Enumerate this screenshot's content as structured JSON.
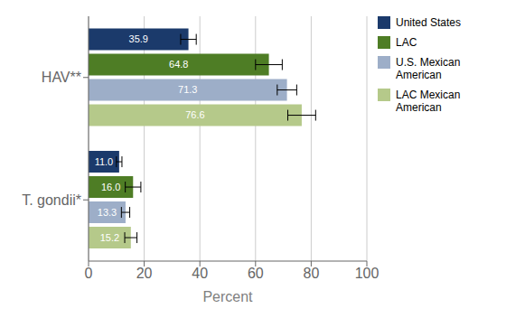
{
  "chart_data": {
    "type": "bar",
    "orientation": "horizontal",
    "categories": [
      "HAV**",
      "T. gondii*"
    ],
    "series": [
      {
        "name": "United States",
        "color": "#1b3a6b",
        "values": [
          35.9,
          11.0
        ],
        "value_labels": [
          "35.9",
          "11.0"
        ],
        "errors": [
          2.8,
          1.0
        ]
      },
      {
        "name": "LAC",
        "color": "#4e7d25",
        "values": [
          64.8,
          16.0
        ],
        "value_labels": [
          "64.8",
          "16.0"
        ],
        "errors": [
          4.8,
          2.8
        ]
      },
      {
        "name": "U.S. Mexican\nAmerican",
        "color": "#9daec8",
        "values": [
          71.3,
          13.3
        ],
        "value_labels": [
          "71.3",
          "13.3"
        ],
        "errors": [
          3.5,
          1.5
        ]
      },
      {
        "name": "LAC Mexican\nAmerican",
        "color": "#b5c98a",
        "values": [
          76.6,
          15.2
        ],
        "value_labels": [
          "76.6",
          "15.2"
        ],
        "errors": [
          5.0,
          2.2
        ]
      }
    ],
    "xlabel": "Percent",
    "xlim": [
      0,
      100
    ],
    "xticks": [
      0,
      20,
      40,
      60,
      80,
      100
    ],
    "grid": true,
    "legend": "right",
    "data_labels": true
  }
}
